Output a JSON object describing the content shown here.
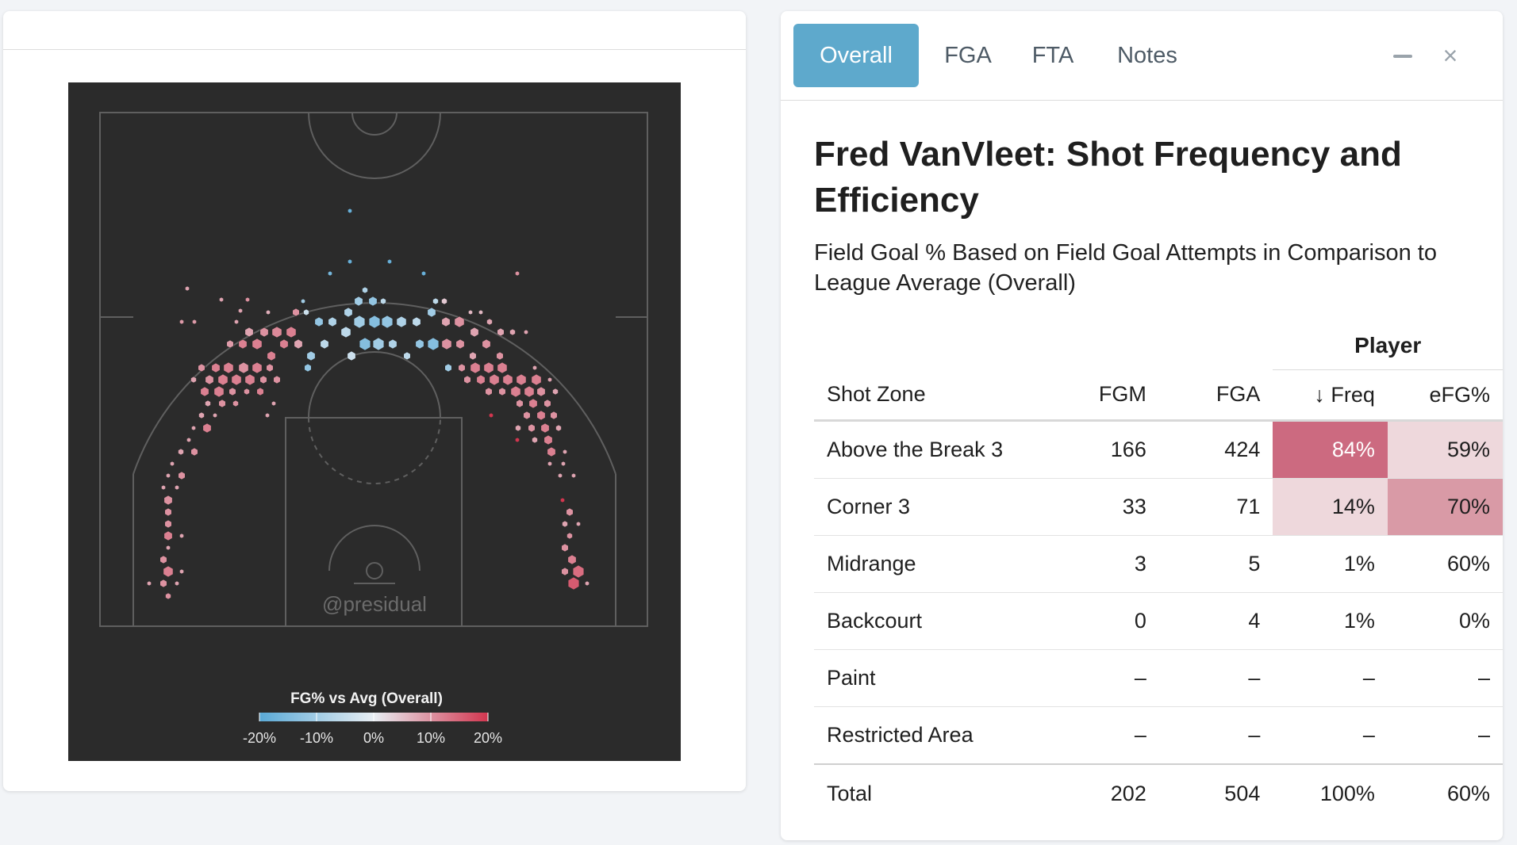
{
  "tabs": [
    {
      "label": "Overall",
      "active": true
    },
    {
      "label": "FGA",
      "active": false
    },
    {
      "label": "FTA",
      "active": false
    },
    {
      "label": "Notes",
      "active": false
    }
  ],
  "window_controls": {
    "minimize_icon": "minus-icon",
    "close_icon": "close-icon",
    "close_glyph": "×"
  },
  "panel": {
    "title": "Fred VanVleet: Shot Frequency and Efficiency",
    "subtitle": "Field Goal % Based on Field Goal Attempts in Comparison to League Average (Overall)"
  },
  "table": {
    "group_header": "Player",
    "columns": [
      "Shot Zone",
      "FGM",
      "FGA",
      "↓ Freq",
      "eFG%"
    ],
    "rows": [
      {
        "zone": "Above the Break 3",
        "fgm": "166",
        "fga": "424",
        "freq": "84%",
        "efg": "59%"
      },
      {
        "zone": "Corner 3",
        "fgm": "33",
        "fga": "71",
        "freq": "14%",
        "efg": "70%"
      },
      {
        "zone": "Midrange",
        "fgm": "3",
        "fga": "5",
        "freq": "1%",
        "efg": "60%"
      },
      {
        "zone": "Backcourt",
        "fgm": "0",
        "fga": "4",
        "freq": "1%",
        "efg": "0%"
      },
      {
        "zone": "Paint",
        "fgm": "–",
        "fga": "–",
        "freq": "–",
        "efg": "–"
      },
      {
        "zone": "Restricted Area",
        "fgm": "–",
        "fga": "–",
        "freq": "–",
        "efg": "–"
      }
    ],
    "total": {
      "zone": "Total",
      "fgm": "202",
      "fga": "504",
      "freq": "100%",
      "efg": "60%"
    }
  },
  "chart": {
    "watermark": "@presidual",
    "legend_title": "FG% vs Avg (Overall)",
    "legend_ticks": [
      "-20%",
      "-10%",
      "0%",
      "10%",
      "20%"
    ],
    "colors": {
      "background": "#2b2b2b",
      "lines": "#5f5f5f",
      "cold": "#5aa9d6",
      "neutral": "#e8eef3",
      "hot": "#d2364f"
    }
  },
  "chart_data": {
    "type": "heatmap",
    "title": "FG% vs Avg (Overall)",
    "color_scale": {
      "min": -20,
      "max": 20,
      "unit": "%",
      "ticks": [
        -20,
        -10,
        0,
        10,
        20
      ]
    },
    "hexes": [
      {
        "x": 355,
        "y": 162,
        "r": 3,
        "v": -18
      },
      {
        "x": 150,
        "y": 260,
        "r": 3,
        "v": 8
      },
      {
        "x": 355,
        "y": 226,
        "r": 3,
        "v": -18
      },
      {
        "x": 405,
        "y": 226,
        "r": 3,
        "v": -18
      },
      {
        "x": 448,
        "y": 241,
        "r": 3,
        "v": -18
      },
      {
        "x": 566,
        "y": 241,
        "r": 3,
        "v": 10
      },
      {
        "x": 330,
        "y": 241,
        "r": 3,
        "v": -16
      },
      {
        "x": 193,
        "y": 274,
        "r": 3,
        "v": 8
      },
      {
        "x": 226,
        "y": 274,
        "r": 3,
        "v": 10
      },
      {
        "x": 296,
        "y": 276,
        "r": 3,
        "v": -10
      },
      {
        "x": 374,
        "y": 262,
        "r": 4,
        "v": -8
      },
      {
        "x": 397,
        "y": 276,
        "r": 4,
        "v": -6
      },
      {
        "x": 463,
        "y": 276,
        "r": 4,
        "v": -6
      },
      {
        "x": 143,
        "y": 302,
        "r": 3,
        "v": 9
      },
      {
        "x": 159,
        "y": 302,
        "r": 3,
        "v": 9
      },
      {
        "x": 217,
        "y": 288,
        "r": 3,
        "v": 8
      },
      {
        "x": 252,
        "y": 290,
        "r": 3,
        "v": 7
      },
      {
        "x": 287,
        "y": 290,
        "r": 5,
        "v": 10
      },
      {
        "x": 300,
        "y": 290,
        "r": 4,
        "v": -4
      },
      {
        "x": 353,
        "y": 290,
        "r": 6,
        "v": -8
      },
      {
        "x": 366,
        "y": 276,
        "r": 6,
        "v": -10
      },
      {
        "x": 384,
        "y": 276,
        "r": 6,
        "v": -12
      },
      {
        "x": 458,
        "y": 290,
        "r": 6,
        "v": -10
      },
      {
        "x": 474,
        "y": 276,
        "r": 4,
        "v": 4
      },
      {
        "x": 507,
        "y": 290,
        "r": 3,
        "v": 6
      },
      {
        "x": 520,
        "y": 290,
        "r": 3,
        "v": 6
      },
      {
        "x": 531,
        "y": 302,
        "r": 4,
        "v": 8
      },
      {
        "x": 212,
        "y": 302,
        "r": 3,
        "v": 8
      },
      {
        "x": 228,
        "y": 315,
        "r": 6,
        "v": 8
      },
      {
        "x": 247,
        "y": 315,
        "r": 6,
        "v": 10
      },
      {
        "x": 263,
        "y": 315,
        "r": 7,
        "v": 11
      },
      {
        "x": 281,
        "y": 315,
        "r": 7,
        "v": 12
      },
      {
        "x": 316,
        "y": 302,
        "r": 6,
        "v": -12
      },
      {
        "x": 333,
        "y": 302,
        "r": 6,
        "v": -8
      },
      {
        "x": 350,
        "y": 315,
        "r": 7,
        "v": -6
      },
      {
        "x": 367,
        "y": 302,
        "r": 8,
        "v": -10
      },
      {
        "x": 386,
        "y": 302,
        "r": 8,
        "v": -14
      },
      {
        "x": 402,
        "y": 302,
        "r": 8,
        "v": -12
      },
      {
        "x": 420,
        "y": 302,
        "r": 7,
        "v": -8
      },
      {
        "x": 439,
        "y": 302,
        "r": 6,
        "v": -6
      },
      {
        "x": 476,
        "y": 302,
        "r": 6,
        "v": 8
      },
      {
        "x": 493,
        "y": 302,
        "r": 7,
        "v": 10
      },
      {
        "x": 512,
        "y": 315,
        "r": 6,
        "v": 8
      },
      {
        "x": 545,
        "y": 315,
        "r": 5,
        "v": 8
      },
      {
        "x": 560,
        "y": 315,
        "r": 4,
        "v": 8
      },
      {
        "x": 577,
        "y": 315,
        "r": 3,
        "v": 8
      },
      {
        "x": 204,
        "y": 330,
        "r": 5,
        "v": 9
      },
      {
        "x": 220,
        "y": 330,
        "r": 6,
        "v": 12
      },
      {
        "x": 238,
        "y": 330,
        "r": 7,
        "v": 12
      },
      {
        "x": 256,
        "y": 345,
        "r": 6,
        "v": 12
      },
      {
        "x": 272,
        "y": 330,
        "r": 6,
        "v": 12
      },
      {
        "x": 290,
        "y": 330,
        "r": 6,
        "v": 8
      },
      {
        "x": 306,
        "y": 345,
        "r": 6,
        "v": -10
      },
      {
        "x": 323,
        "y": 330,
        "r": 6,
        "v": -6
      },
      {
        "x": 357,
        "y": 345,
        "r": 6,
        "v": -4
      },
      {
        "x": 374,
        "y": 330,
        "r": 8,
        "v": -14
      },
      {
        "x": 391,
        "y": 330,
        "r": 8,
        "v": -10
      },
      {
        "x": 409,
        "y": 330,
        "r": 6,
        "v": -8
      },
      {
        "x": 427,
        "y": 345,
        "r": 5,
        "v": -6
      },
      {
        "x": 443,
        "y": 330,
        "r": 6,
        "v": -12
      },
      {
        "x": 460,
        "y": 330,
        "r": 8,
        "v": -14
      },
      {
        "x": 477,
        "y": 330,
        "r": 7,
        "v": 10
      },
      {
        "x": 494,
        "y": 330,
        "r": 6,
        "v": 10
      },
      {
        "x": 510,
        "y": 345,
        "r": 5,
        "v": 8
      },
      {
        "x": 527,
        "y": 330,
        "r": 6,
        "v": 10
      },
      {
        "x": 544,
        "y": 345,
        "r": 5,
        "v": 10
      },
      {
        "x": 168,
        "y": 360,
        "r": 5,
        "v": 10
      },
      {
        "x": 186,
        "y": 360,
        "r": 6,
        "v": 12
      },
      {
        "x": 202,
        "y": 360,
        "r": 7,
        "v": 12
      },
      {
        "x": 221,
        "y": 360,
        "r": 7,
        "v": 10
      },
      {
        "x": 238,
        "y": 360,
        "r": 7,
        "v": 12
      },
      {
        "x": 254,
        "y": 360,
        "r": 5,
        "v": 10
      },
      {
        "x": 302,
        "y": 360,
        "r": 5,
        "v": -12
      },
      {
        "x": 479,
        "y": 360,
        "r": 5,
        "v": -10
      },
      {
        "x": 496,
        "y": 360,
        "r": 5,
        "v": 10
      },
      {
        "x": 513,
        "y": 360,
        "r": 7,
        "v": 12
      },
      {
        "x": 530,
        "y": 360,
        "r": 7,
        "v": 12
      },
      {
        "x": 547,
        "y": 360,
        "r": 7,
        "v": 12
      },
      {
        "x": 588,
        "y": 360,
        "r": 3,
        "v": 8
      },
      {
        "x": 158,
        "y": 375,
        "r": 4,
        "v": 8
      },
      {
        "x": 178,
        "y": 375,
        "r": 6,
        "v": 10
      },
      {
        "x": 195,
        "y": 375,
        "r": 7,
        "v": 12
      },
      {
        "x": 212,
        "y": 375,
        "r": 7,
        "v": 12
      },
      {
        "x": 229,
        "y": 375,
        "r": 7,
        "v": 12
      },
      {
        "x": 246,
        "y": 375,
        "r": 5,
        "v": 10
      },
      {
        "x": 263,
        "y": 375,
        "r": 5,
        "v": 10
      },
      {
        "x": 503,
        "y": 375,
        "r": 5,
        "v": 10
      },
      {
        "x": 520,
        "y": 375,
        "r": 6,
        "v": 12
      },
      {
        "x": 537,
        "y": 375,
        "r": 7,
        "v": 12
      },
      {
        "x": 554,
        "y": 375,
        "r": 7,
        "v": 12
      },
      {
        "x": 571,
        "y": 375,
        "r": 7,
        "v": 12
      },
      {
        "x": 590,
        "y": 375,
        "r": 7,
        "v": 12
      },
      {
        "x": 607,
        "y": 375,
        "r": 3,
        "v": 8
      },
      {
        "x": 172,
        "y": 390,
        "r": 6,
        "v": 12
      },
      {
        "x": 190,
        "y": 390,
        "r": 7,
        "v": 12
      },
      {
        "x": 207,
        "y": 390,
        "r": 5,
        "v": 10
      },
      {
        "x": 225,
        "y": 390,
        "r": 4,
        "v": 10
      },
      {
        "x": 242,
        "y": 390,
        "r": 5,
        "v": 12
      },
      {
        "x": 530,
        "y": 390,
        "r": 5,
        "v": 10
      },
      {
        "x": 547,
        "y": 390,
        "r": 5,
        "v": 10
      },
      {
        "x": 564,
        "y": 390,
        "r": 7,
        "v": 12
      },
      {
        "x": 581,
        "y": 390,
        "r": 7,
        "v": 12
      },
      {
        "x": 596,
        "y": 390,
        "r": 6,
        "v": 10
      },
      {
        "x": 614,
        "y": 390,
        "r": 4,
        "v": 8
      },
      {
        "x": 176,
        "y": 405,
        "r": 4,
        "v": 8
      },
      {
        "x": 194,
        "y": 405,
        "r": 5,
        "v": 10
      },
      {
        "x": 211,
        "y": 405,
        "r": 4,
        "v": 10
      },
      {
        "x": 259,
        "y": 405,
        "r": 3,
        "v": 8
      },
      {
        "x": 569,
        "y": 405,
        "r": 5,
        "v": 10
      },
      {
        "x": 586,
        "y": 405,
        "r": 6,
        "v": 12
      },
      {
        "x": 604,
        "y": 405,
        "r": 5,
        "v": 10
      },
      {
        "x": 168,
        "y": 420,
        "r": 4,
        "v": 8
      },
      {
        "x": 185,
        "y": 420,
        "r": 3,
        "v": 8
      },
      {
        "x": 251,
        "y": 420,
        "r": 3,
        "v": 8
      },
      {
        "x": 533,
        "y": 420,
        "r": 3,
        "v": 20
      },
      {
        "x": 578,
        "y": 420,
        "r": 5,
        "v": 10
      },
      {
        "x": 596,
        "y": 420,
        "r": 6,
        "v": 12
      },
      {
        "x": 612,
        "y": 420,
        "r": 5,
        "v": 10
      },
      {
        "x": 158,
        "y": 436,
        "r": 3,
        "v": 8
      },
      {
        "x": 175,
        "y": 436,
        "r": 6,
        "v": 12
      },
      {
        "x": 567,
        "y": 436,
        "r": 4,
        "v": 8
      },
      {
        "x": 584,
        "y": 436,
        "r": 5,
        "v": 10
      },
      {
        "x": 601,
        "y": 436,
        "r": 6,
        "v": 12
      },
      {
        "x": 618,
        "y": 436,
        "r": 4,
        "v": 8
      },
      {
        "x": 152,
        "y": 451,
        "r": 3,
        "v": 8
      },
      {
        "x": 566,
        "y": 451,
        "r": 3,
        "v": 20
      },
      {
        "x": 588,
        "y": 451,
        "r": 4,
        "v": 8
      },
      {
        "x": 605,
        "y": 451,
        "r": 6,
        "v": 12
      },
      {
        "x": 142,
        "y": 466,
        "r": 4,
        "v": 8
      },
      {
        "x": 159,
        "y": 466,
        "r": 5,
        "v": 10
      },
      {
        "x": 609,
        "y": 466,
        "r": 6,
        "v": 12
      },
      {
        "x": 626,
        "y": 466,
        "r": 3,
        "v": 8
      },
      {
        "x": 131,
        "y": 481,
        "r": 3,
        "v": 8
      },
      {
        "x": 607,
        "y": 481,
        "r": 3,
        "v": 8
      },
      {
        "x": 624,
        "y": 481,
        "r": 3,
        "v": 8
      },
      {
        "x": 126,
        "y": 496,
        "r": 3,
        "v": 8
      },
      {
        "x": 143,
        "y": 496,
        "r": 5,
        "v": 10
      },
      {
        "x": 620,
        "y": 496,
        "r": 3,
        "v": 8
      },
      {
        "x": 637,
        "y": 496,
        "r": 3,
        "v": 8
      },
      {
        "x": 120,
        "y": 511,
        "r": 3,
        "v": 8
      },
      {
        "x": 137,
        "y": 511,
        "r": 3,
        "v": 8
      },
      {
        "x": 126,
        "y": 527,
        "r": 6,
        "v": 10
      },
      {
        "x": 623,
        "y": 527,
        "r": 3,
        "v": 20
      },
      {
        "x": 632,
        "y": 542,
        "r": 5,
        "v": 10
      },
      {
        "x": 126,
        "y": 542,
        "r": 5,
        "v": 10
      },
      {
        "x": 126,
        "y": 557,
        "r": 5,
        "v": 10
      },
      {
        "x": 626,
        "y": 557,
        "r": 4,
        "v": 8
      },
      {
        "x": 643,
        "y": 557,
        "r": 3,
        "v": 8
      },
      {
        "x": 126,
        "y": 572,
        "r": 6,
        "v": 12
      },
      {
        "x": 143,
        "y": 572,
        "r": 3,
        "v": 8
      },
      {
        "x": 632,
        "y": 572,
        "r": 4,
        "v": 10
      },
      {
        "x": 126,
        "y": 587,
        "r": 3,
        "v": 8
      },
      {
        "x": 626,
        "y": 587,
        "r": 5,
        "v": 10
      },
      {
        "x": 120,
        "y": 602,
        "r": 5,
        "v": 10
      },
      {
        "x": 635,
        "y": 602,
        "r": 6,
        "v": 12
      },
      {
        "x": 126,
        "y": 617,
        "r": 7,
        "v": 12
      },
      {
        "x": 143,
        "y": 617,
        "r": 3,
        "v": 8
      },
      {
        "x": 626,
        "y": 617,
        "r": 5,
        "v": 10
      },
      {
        "x": 643,
        "y": 617,
        "r": 8,
        "v": 14
      },
      {
        "x": 102,
        "y": 632,
        "r": 3,
        "v": 8
      },
      {
        "x": 120,
        "y": 632,
        "r": 5,
        "v": 10
      },
      {
        "x": 137,
        "y": 632,
        "r": 3,
        "v": 8
      },
      {
        "x": 637,
        "y": 632,
        "r": 8,
        "v": 16
      },
      {
        "x": 654,
        "y": 632,
        "r": 3,
        "v": 8
      },
      {
        "x": 126,
        "y": 648,
        "r": 4,
        "v": 10
      }
    ]
  }
}
